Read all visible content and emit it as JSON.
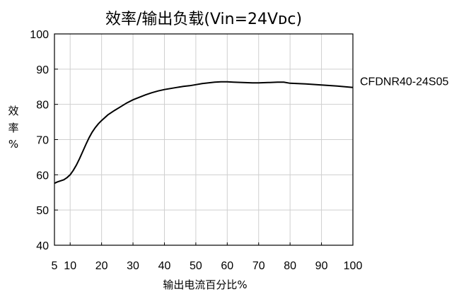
{
  "chart_data": {
    "type": "line",
    "title": "效率/输出负载(Vin=24Vᴅᴄ)",
    "xlabel": "输出电流百分比%",
    "ylabel": [
      "效",
      "率",
      "%"
    ],
    "x_ticks": [
      5,
      10,
      20,
      30,
      40,
      50,
      60,
      70,
      80,
      90,
      100
    ],
    "y_ticks": [
      40,
      50,
      60,
      70,
      80,
      90,
      100
    ],
    "xlim": [
      5,
      100
    ],
    "ylim": [
      40,
      100
    ],
    "grid": true,
    "series": [
      {
        "name": "CFDNR40-24S05",
        "color": "#000000",
        "x": [
          5,
          6,
          7,
          8,
          9,
          10,
          11,
          12,
          13,
          14,
          15,
          16,
          17,
          18,
          19,
          20,
          22,
          24,
          26,
          28,
          30,
          32,
          34,
          36,
          38,
          40,
          42,
          44,
          46,
          48,
          50,
          52,
          54,
          56,
          58,
          60,
          62,
          65,
          68,
          70,
          73,
          76,
          78,
          80,
          85,
          90,
          95,
          100
        ],
        "y": [
          57.6,
          58.0,
          58.3,
          58.6,
          59.2,
          60.0,
          61.3,
          62.8,
          64.6,
          66.6,
          68.6,
          70.5,
          72.1,
          73.4,
          74.5,
          75.4,
          77.0,
          78.2,
          79.3,
          80.4,
          81.3,
          82.0,
          82.7,
          83.3,
          83.8,
          84.2,
          84.5,
          84.8,
          85.1,
          85.3,
          85.6,
          85.9,
          86.1,
          86.3,
          86.4,
          86.4,
          86.3,
          86.2,
          86.1,
          86.1,
          86.2,
          86.3,
          86.3,
          86.0,
          85.8,
          85.5,
          85.2,
          84.8
        ]
      }
    ]
  }
}
